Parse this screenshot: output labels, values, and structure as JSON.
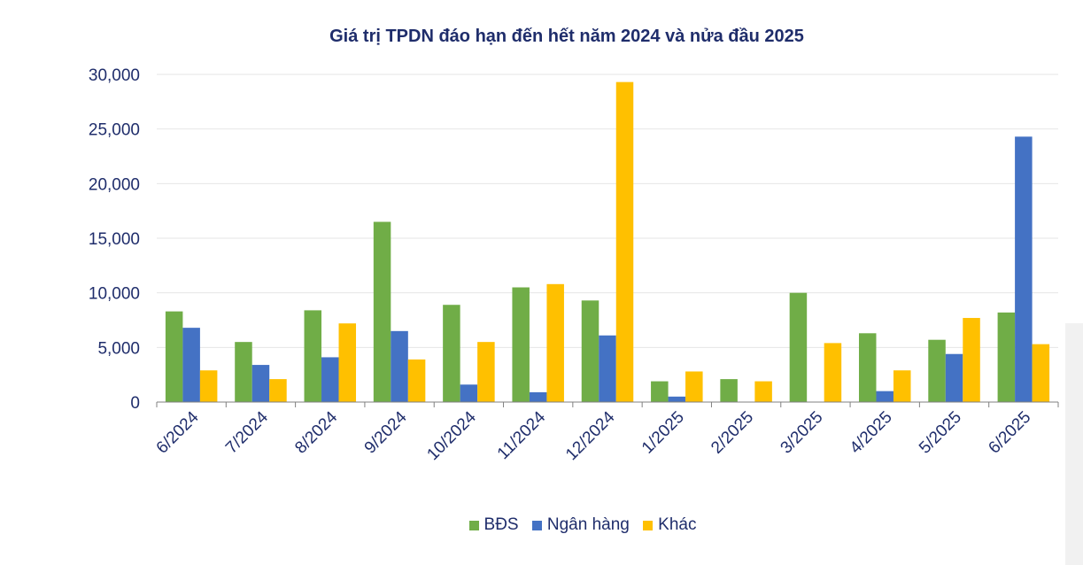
{
  "chart_data": {
    "type": "bar",
    "title": "Giá trị TPDN đáo hạn đến hết năm 2024 và nửa đầu 2025",
    "categories": [
      "6/2024",
      "7/2024",
      "8/2024",
      "9/2024",
      "10/2024",
      "11/2024",
      "12/2024",
      "1/2025",
      "2/2025",
      "3/2025",
      "4/2025",
      "5/2025",
      "6/2025"
    ],
    "series": [
      {
        "name": "BĐS",
        "color": "#70ad47",
        "values": [
          8300,
          5500,
          8400,
          16500,
          8900,
          10500,
          9300,
          1900,
          2100,
          10000,
          6300,
          5700,
          8200
        ]
      },
      {
        "name": "Ngân hàng",
        "color": "#4472c4",
        "values": [
          6800,
          3400,
          4100,
          6500,
          1600,
          900,
          6100,
          500,
          null,
          null,
          1000,
          4400,
          24300
        ]
      },
      {
        "name": "Khác",
        "color": "#ffc000",
        "values": [
          2900,
          2100,
          7200,
          3900,
          5500,
          10800,
          29300,
          2800,
          1900,
          5400,
          2900,
          7700,
          5300
        ]
      }
    ],
    "ylim": [
      0,
      30000
    ],
    "yticks": [
      0,
      5000,
      10000,
      15000,
      20000,
      25000,
      30000
    ],
    "ytick_labels": [
      "0",
      "5,000",
      "10,000",
      "15,000",
      "20,000",
      "25,000",
      "30,000"
    ],
    "xlabel": "",
    "ylabel": "",
    "grid": true,
    "legend_position": "bottom"
  }
}
